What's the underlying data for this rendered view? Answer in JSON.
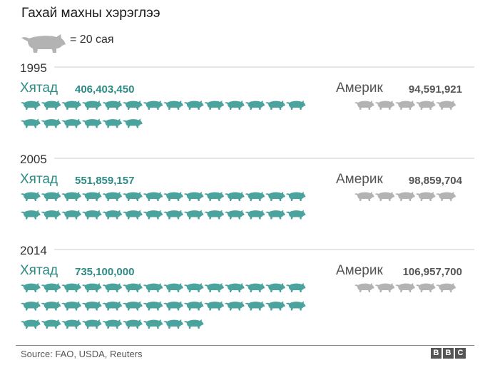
{
  "title": "Гахай махны хэрэглээ",
  "legend": {
    "text": "= 20 сая",
    "icon": "pig-icon",
    "unit_value": 20000000
  },
  "colors": {
    "china": "#4ba39e",
    "china_text": "#2d8a84",
    "us": "#b3b3b3",
    "us_text": "#555555",
    "rule": "#cccccc"
  },
  "chart_data": {
    "type": "pictogram",
    "title": "Гахай махны хэрэглээ",
    "unit_label": "= 20 сая",
    "unit_value": 20000000,
    "groups": [
      {
        "year": "1995",
        "china": {
          "name": "Хятад",
          "value": 406403450,
          "value_label": "406,403,450",
          "icons": 20
        },
        "us": {
          "name": "Америк",
          "value": 94591921,
          "value_label": "94,591,921",
          "icons": 5
        }
      },
      {
        "year": "2005",
        "china": {
          "name": "Хятад",
          "value": 551859157,
          "value_label": "551,859,157",
          "icons": 28
        },
        "us": {
          "name": "Америк",
          "value": 98859704,
          "value_label": "98,859,704",
          "icons": 5
        }
      },
      {
        "year": "2014",
        "china": {
          "name": "Хятад",
          "value": 735100000,
          "value_label": "735,100,000",
          "icons": 37
        },
        "us": {
          "name": "Америк",
          "value": 106957700,
          "value_label": "106,957,700",
          "icons": 5
        }
      }
    ]
  },
  "source": "Source: FAO, USDA, Reuters",
  "logo": [
    "B",
    "B",
    "C"
  ]
}
